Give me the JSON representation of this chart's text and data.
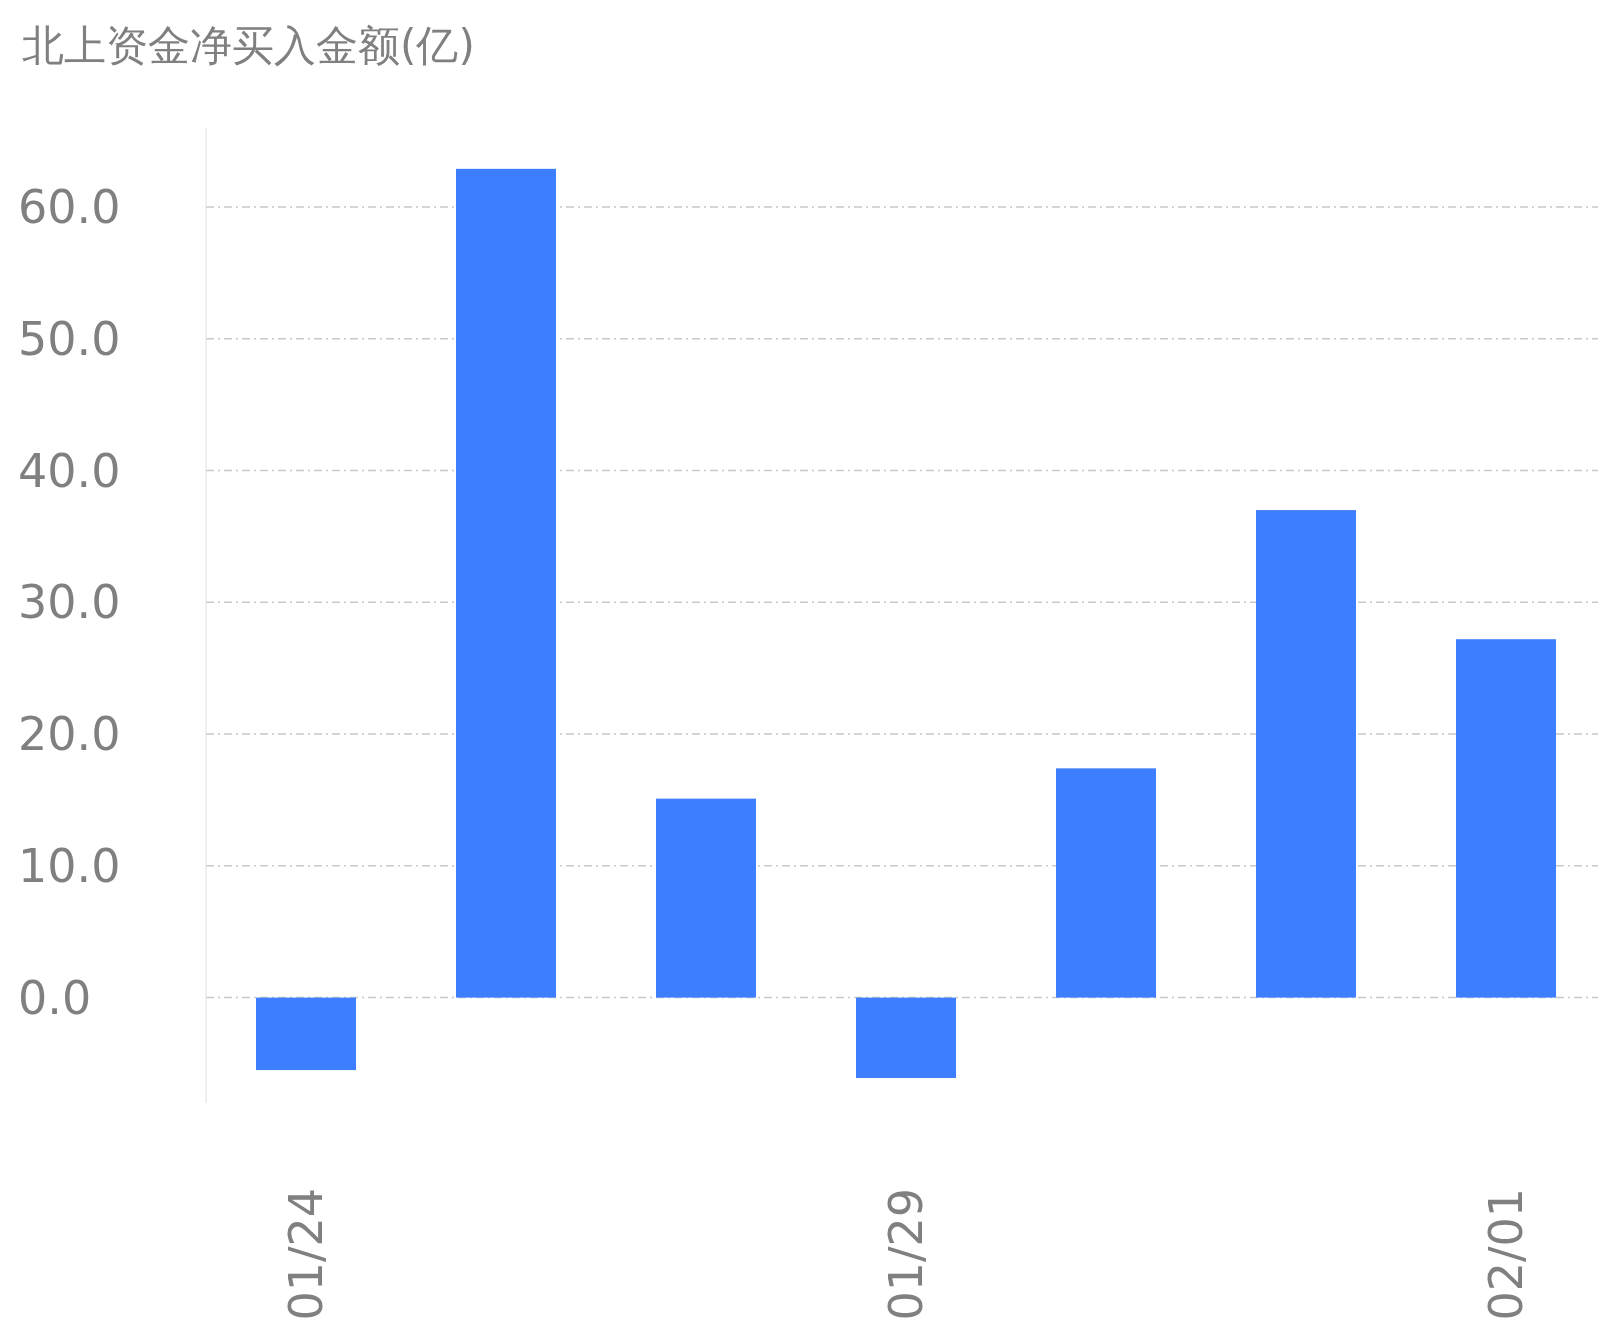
{
  "chart_data": {
    "type": "bar",
    "title": "北上资金净买入金额(亿)",
    "categories": [
      "01/24",
      null,
      null,
      "01/29",
      null,
      null,
      "02/01"
    ],
    "values": [
      -5.5,
      62.9,
      15.1,
      -6.1,
      17.4,
      37.0,
      27.2
    ],
    "color": "#3d7eff",
    "yticks": [
      {
        "value": 0,
        "label": "0.0"
      },
      {
        "value": 10,
        "label": "10.0"
      },
      {
        "value": 20,
        "label": "20.0"
      },
      {
        "value": 30,
        "label": "30.0"
      },
      {
        "value": 40,
        "label": "40.0"
      },
      {
        "value": 50,
        "label": "50.0"
      },
      {
        "value": 60,
        "label": "60.0"
      }
    ],
    "ylim": [
      -8,
      66
    ],
    "grid": "y"
  }
}
